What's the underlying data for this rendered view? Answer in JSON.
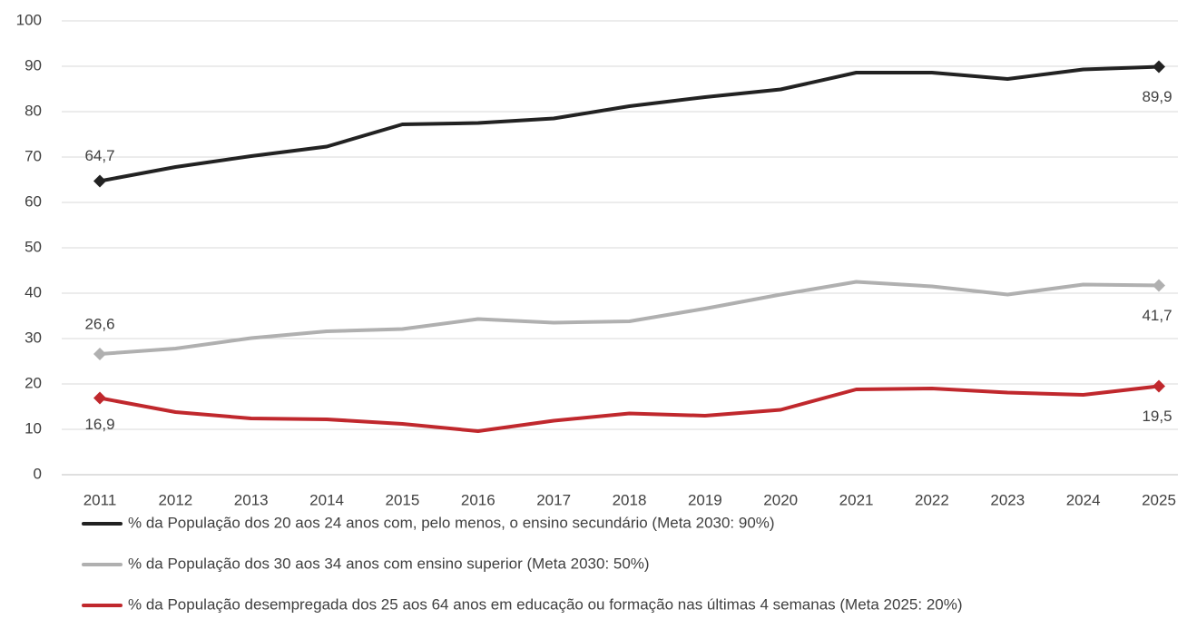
{
  "chart_data": {
    "type": "line",
    "categories": [
      "2011",
      "2012",
      "2013",
      "2014",
      "2015",
      "2016",
      "2017",
      "2018",
      "2019",
      "2020",
      "2021",
      "2022",
      "2023",
      "2024",
      "2025"
    ],
    "series": [
      {
        "name": "% da População dos 20 aos 24 anos com, pelo menos, o ensino secundário (Meta 2030: 90%)",
        "color": "#222222",
        "values": [
          64.7,
          67.8,
          70.2,
          72.3,
          77.2,
          77.5,
          78.5,
          81.2,
          83.2,
          84.9,
          88.6,
          88.6,
          87.2,
          89.3,
          89.9
        ],
        "value_labels": [
          "64,7",
          null,
          null,
          null,
          null,
          null,
          null,
          null,
          null,
          null,
          null,
          null,
          null,
          null,
          "89,9"
        ]
      },
      {
        "name": "% da População dos 30 aos 34 anos com ensino superior (Meta 2030: 50%)",
        "color": "#b0b0b0",
        "values": [
          26.6,
          27.8,
          30.1,
          31.6,
          32.1,
          34.3,
          33.5,
          33.8,
          36.6,
          39.7,
          42.5,
          41.5,
          39.7,
          41.9,
          41.7
        ],
        "value_labels": [
          "26,6",
          null,
          null,
          null,
          null,
          null,
          null,
          null,
          null,
          null,
          null,
          null,
          null,
          null,
          "41,7"
        ]
      },
      {
        "name": "% da População desempregada dos 25 aos 64 anos em educação ou formação nas últimas 4 semanas (Meta 2025: 20%)",
        "color": "#c0282d",
        "values": [
          16.9,
          13.8,
          12.4,
          12.2,
          11.2,
          9.6,
          11.9,
          13.5,
          13.0,
          14.3,
          18.8,
          19.0,
          18.1,
          17.6,
          19.5
        ],
        "value_labels": [
          "16,9",
          null,
          null,
          null,
          null,
          null,
          null,
          null,
          null,
          null,
          null,
          null,
          null,
          null,
          "19,5"
        ]
      }
    ],
    "ylim": [
      0,
      100
    ],
    "yticks": [
      0,
      10,
      20,
      30,
      40,
      50,
      60,
      70,
      80,
      90,
      100
    ],
    "grid": true
  }
}
